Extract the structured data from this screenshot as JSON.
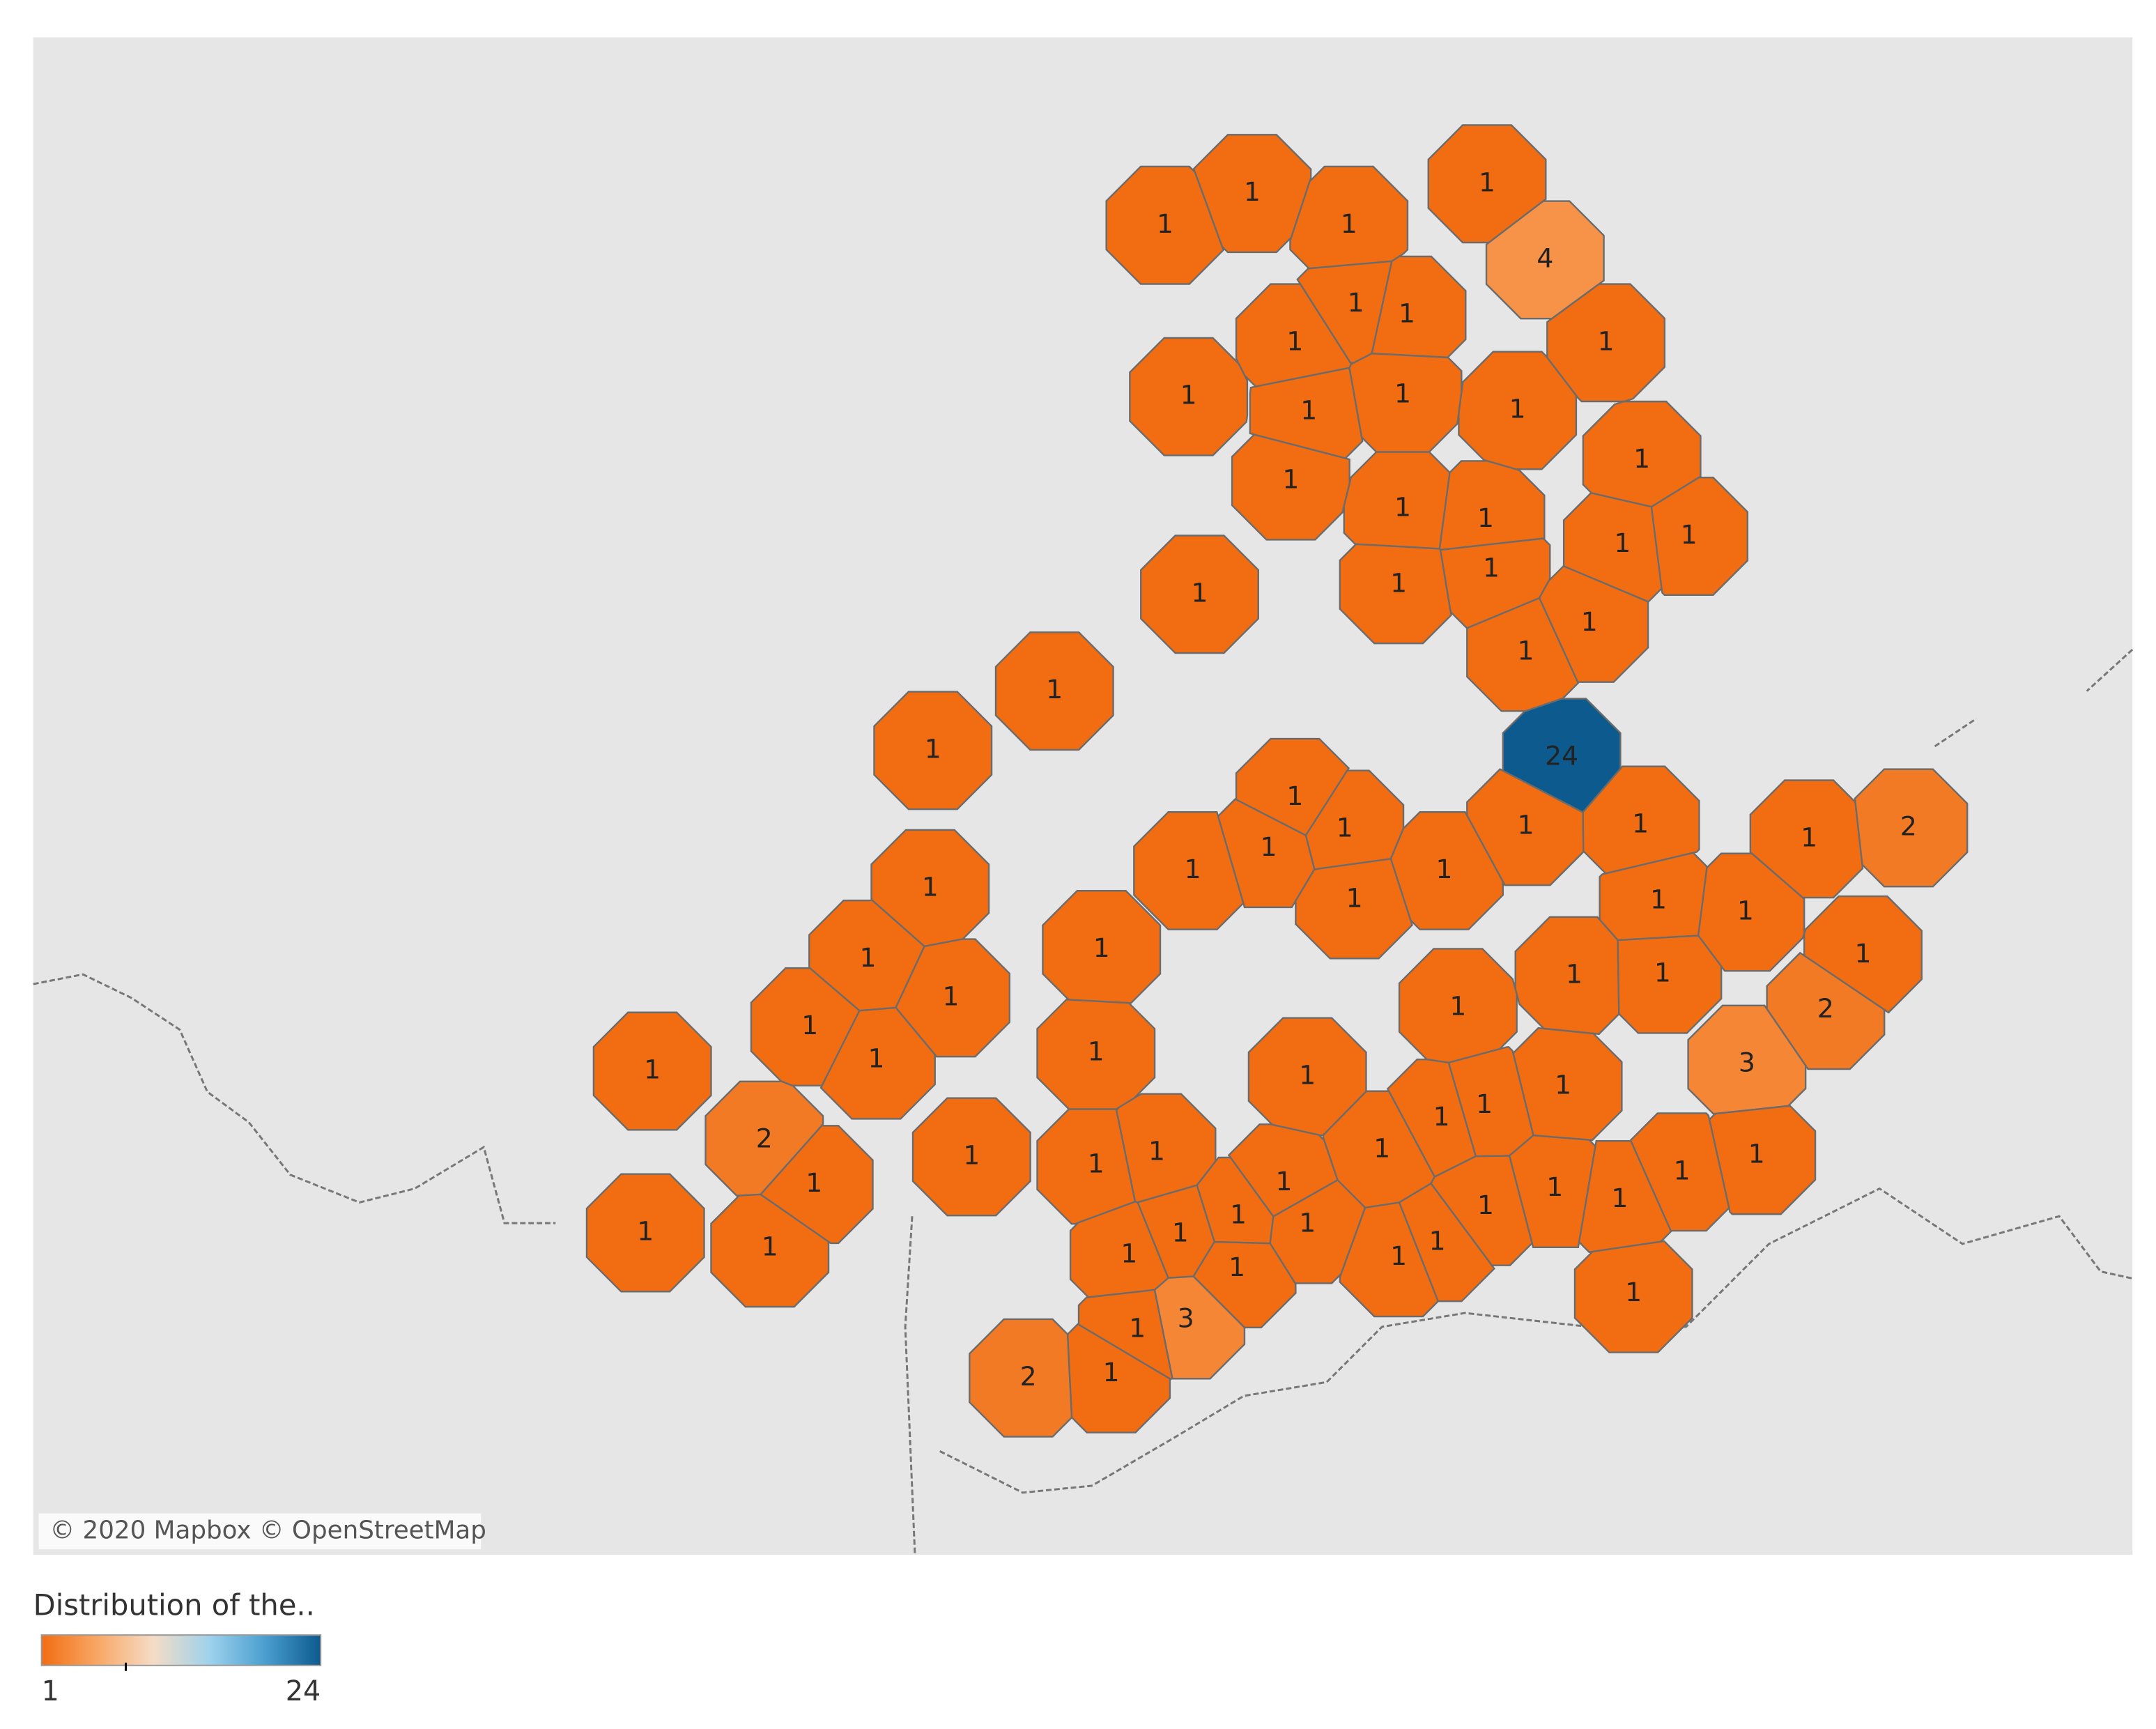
{
  "map": {
    "attribution": "© 2020 Mapbox © OpenStreetMap",
    "regions": [
      1,
      1,
      1,
      1,
      4,
      1,
      1,
      1,
      1,
      1,
      1,
      1,
      1,
      1,
      1,
      1,
      1,
      1,
      1,
      1,
      1,
      1,
      1,
      1,
      1,
      1,
      24,
      1,
      1,
      1,
      1,
      1,
      2,
      1,
      1,
      1,
      1,
      1,
      1,
      1,
      1,
      1,
      1,
      1,
      1,
      1,
      1,
      2,
      1,
      1,
      1,
      1,
      1,
      3,
      1,
      1,
      1,
      2,
      1,
      1,
      1,
      1,
      1,
      1,
      1,
      1,
      1,
      1,
      1,
      1,
      1,
      1,
      1,
      1,
      1,
      1,
      1,
      1,
      1,
      3,
      1,
      2,
      1
    ]
  },
  "legend": {
    "title": "Distribution of the..",
    "min": 1,
    "max": 24,
    "colors": [
      "#f26d12",
      "#f8a765",
      "#f5dcc6",
      "#9fd2ec",
      "#4a9fd0",
      "#0d5a8e"
    ]
  }
}
